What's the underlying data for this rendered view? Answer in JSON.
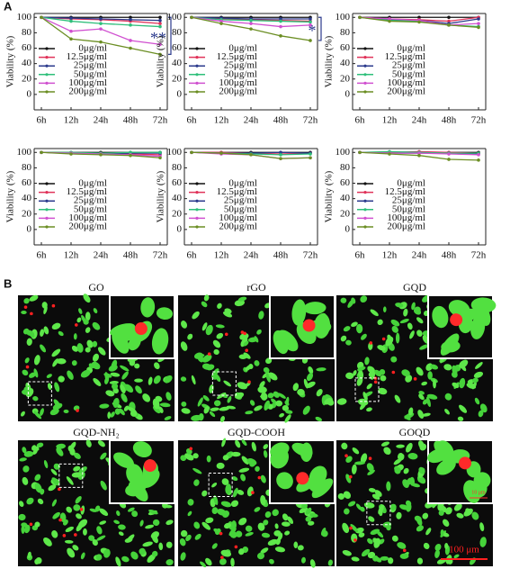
{
  "panel_labels": [
    "A",
    "B"
  ],
  "chart_data": [
    {
      "type": "line",
      "y_label": "Viability (%)",
      "categories": [
        "6h",
        "12h",
        "24h",
        "48h",
        "72h"
      ],
      "ylim": [
        -20,
        105
      ],
      "yticks": [
        0,
        20,
        40,
        60,
        80,
        100
      ],
      "legend": "lower left",
      "annotation": "**",
      "series": [
        {
          "name": "0μg/ml",
          "color": "#111111",
          "values": [
            100,
            100,
            100,
            100,
            100
          ]
        },
        {
          "name": "12.5μg/ml",
          "color": "#e0335a",
          "values": [
            100,
            98,
            97,
            95,
            92
          ]
        },
        {
          "name": "25μg/ml",
          "color": "#2b3a8c",
          "values": [
            100,
            99,
            98,
            97,
            96
          ]
        },
        {
          "name": "50μg/ml",
          "color": "#2ebf7a",
          "values": [
            100,
            95,
            92,
            90,
            88
          ]
        },
        {
          "name": "100μg/ml",
          "color": "#d050d0",
          "values": [
            100,
            82,
            85,
            70,
            65
          ]
        },
        {
          "name": "200μg/ml",
          "color": "#6b8e23",
          "values": [
            100,
            72,
            68,
            60,
            52
          ]
        }
      ]
    },
    {
      "type": "line",
      "y_label": "Viability (%)",
      "categories": [
        "6h",
        "12h",
        "24h",
        "48h",
        "72h"
      ],
      "ylim": [
        -20,
        105
      ],
      "yticks": [
        0,
        20,
        40,
        60,
        80,
        100
      ],
      "legend": "lower left",
      "annotation": "*",
      "series": [
        {
          "name": "0μg/ml",
          "color": "#111111",
          "values": [
            100,
            100,
            100,
            100,
            100
          ]
        },
        {
          "name": "12.5μg/ml",
          "color": "#e0335a",
          "values": [
            100,
            98,
            97,
            96,
            95
          ]
        },
        {
          "name": "25μg/ml",
          "color": "#2b3a8c",
          "values": [
            100,
            99,
            98,
            98,
            98
          ]
        },
        {
          "name": "50μg/ml",
          "color": "#2ebf7a",
          "values": [
            100,
            97,
            96,
            95,
            94
          ]
        },
        {
          "name": "100μg/ml",
          "color": "#d050d0",
          "values": [
            100,
            95,
            92,
            88,
            90
          ]
        },
        {
          "name": "200μg/ml",
          "color": "#6b8e23",
          "values": [
            100,
            92,
            85,
            76,
            70
          ]
        }
      ]
    },
    {
      "type": "line",
      "y_label": "Viability (%)",
      "categories": [
        "6h",
        "12h",
        "24h",
        "48h",
        "72h"
      ],
      "ylim": [
        -20,
        105
      ],
      "yticks": [
        0,
        20,
        40,
        60,
        80,
        100
      ],
      "legend": "lower left",
      "series": [
        {
          "name": "0μg/ml",
          "color": "#111111",
          "values": [
            100,
            100,
            100,
            100,
            100
          ]
        },
        {
          "name": "12.5μg/ml",
          "color": "#e0335a",
          "values": [
            100,
            98,
            97,
            95,
            100
          ]
        },
        {
          "name": "25μg/ml",
          "color": "#2b3a8c",
          "values": [
            100,
            97,
            96,
            92,
            98
          ]
        },
        {
          "name": "50μg/ml",
          "color": "#2ebf7a",
          "values": [
            100,
            96,
            95,
            90,
            88
          ]
        },
        {
          "name": "100μg/ml",
          "color": "#d050d0",
          "values": [
            100,
            98,
            96,
            90,
            92
          ]
        },
        {
          "name": "200μg/ml",
          "color": "#6b8e23",
          "values": [
            100,
            95,
            94,
            90,
            87
          ]
        }
      ]
    },
    {
      "type": "line",
      "y_label": "Viability (%)",
      "categories": [
        "6h",
        "12h",
        "24h",
        "48h",
        "72h"
      ],
      "ylim": [
        -20,
        105
      ],
      "yticks": [
        0,
        20,
        40,
        60,
        80,
        100
      ],
      "legend": "lower left",
      "series": [
        {
          "name": "0μg/ml",
          "color": "#111111",
          "values": [
            100,
            100,
            100,
            100,
            100
          ]
        },
        {
          "name": "12.5μg/ml",
          "color": "#e0335a",
          "values": [
            100,
            99,
            99,
            98,
            97
          ]
        },
        {
          "name": "25μg/ml",
          "color": "#2b3a8c",
          "values": [
            100,
            99,
            98,
            99,
            99
          ]
        },
        {
          "name": "50μg/ml",
          "color": "#2ebf7a",
          "values": [
            100,
            100,
            99,
            100,
            100
          ]
        },
        {
          "name": "100μg/ml",
          "color": "#d050d0",
          "values": [
            100,
            99,
            98,
            97,
            95
          ]
        },
        {
          "name": "200μg/ml",
          "color": "#6b8e23",
          "values": [
            100,
            98,
            97,
            96,
            93
          ]
        }
      ]
    },
    {
      "type": "line",
      "y_label": "Viability (%)",
      "categories": [
        "6h",
        "12h",
        "24h",
        "48h",
        "72h"
      ],
      "ylim": [
        -20,
        105
      ],
      "yticks": [
        0,
        20,
        40,
        60,
        80,
        100
      ],
      "legend": "lower left",
      "series": [
        {
          "name": "0μg/ml",
          "color": "#111111",
          "values": [
            100,
            100,
            100,
            100,
            100
          ]
        },
        {
          "name": "12.5μg/ml",
          "color": "#e0335a",
          "values": [
            100,
            100,
            99,
            98,
            99
          ]
        },
        {
          "name": "25μg/ml",
          "color": "#2b3a8c",
          "values": [
            100,
            99,
            99,
            100,
            99
          ]
        },
        {
          "name": "50μg/ml",
          "color": "#2ebf7a",
          "values": [
            100,
            99,
            98,
            97,
            98
          ]
        },
        {
          "name": "100μg/ml",
          "color": "#d050d0",
          "values": [
            100,
            98,
            97,
            92,
            93
          ]
        },
        {
          "name": "200μg/ml",
          "color": "#6b8e23",
          "values": [
            100,
            99,
            97,
            92,
            93
          ]
        }
      ]
    },
    {
      "type": "line",
      "y_label": "Viability (%)",
      "categories": [
        "6h",
        "12h",
        "24h",
        "48h",
        "72h"
      ],
      "ylim": [
        -20,
        105
      ],
      "yticks": [
        0,
        20,
        40,
        60,
        80,
        100
      ],
      "legend": "lower left",
      "series": [
        {
          "name": "0μg/ml",
          "color": "#111111",
          "values": [
            100,
            100,
            100,
            100,
            100
          ]
        },
        {
          "name": "12.5μg/ml",
          "color": "#e0335a",
          "values": [
            100,
            100,
            101,
            100,
            99
          ]
        },
        {
          "name": "25μg/ml",
          "color": "#2b3a8c",
          "values": [
            100,
            99,
            99,
            99,
            98
          ]
        },
        {
          "name": "50μg/ml",
          "color": "#2ebf7a",
          "values": [
            100,
            101,
            100,
            99,
            99
          ]
        },
        {
          "name": "100μg/ml",
          "color": "#d050d0",
          "values": [
            100,
            99,
            99,
            98,
            97
          ]
        },
        {
          "name": "200μg/ml",
          "color": "#6b8e23",
          "values": [
            100,
            98,
            96,
            91,
            90
          ]
        }
      ]
    }
  ],
  "images": [
    {
      "title": "GO"
    },
    {
      "title": "rGO"
    },
    {
      "title": "GQD"
    },
    {
      "title": "GQD-NH₂"
    },
    {
      "title": "GQD-COOH"
    },
    {
      "title": "GOQD",
      "inset_scale": "10 μm"
    }
  ],
  "scale_bar": "100 μm"
}
